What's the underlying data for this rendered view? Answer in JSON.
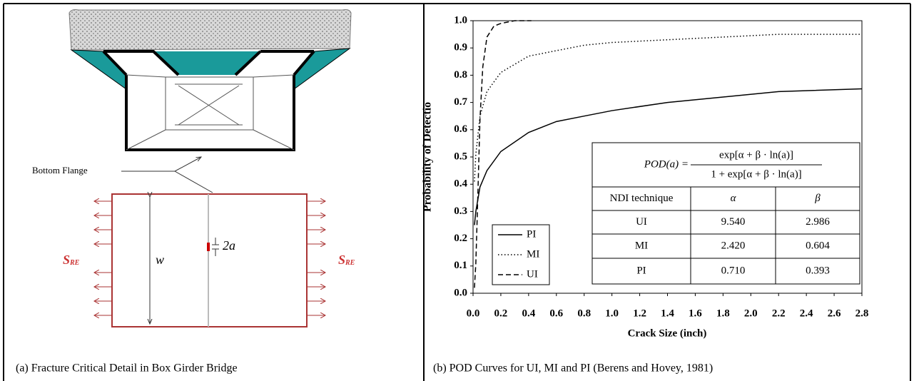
{
  "panel_a": {
    "caption": "(a) Fracture Critical Detail in Box Girder Bridge",
    "labels": {
      "bottom_flange": "Bottom Flange",
      "width": "w",
      "crack_symbol": "2a",
      "stress_symbol": "S",
      "stress_subscript": "RE"
    }
  },
  "chart_data": {
    "type": "line",
    "caption": "(b) POD Curves for UI, MI and PI (Berens and Hovey, 1981)",
    "xlabel": "Crack Size (inch)",
    "ylabel": "Probability of Detectio",
    "xlim": [
      0,
      2.8
    ],
    "ylim": [
      0,
      1
    ],
    "xticks": [
      {
        "value": 0,
        "label": "0.0"
      },
      0.2,
      0.4,
      0.6,
      0.8,
      {
        "value": 1,
        "label": "1.0"
      },
      1.2,
      1.4,
      1.6,
      1.8,
      {
        "value": 2,
        "label": "2.0"
      },
      2.2,
      2.4,
      2.6,
      2.8
    ],
    "yticks": [
      {
        "value": 0,
        "label": "0.0"
      },
      0.1,
      0.2,
      0.3,
      0.4,
      0.5,
      0.6,
      0.7,
      0.8,
      0.9,
      {
        "value": 1,
        "label": "1.0"
      }
    ],
    "legend": "lower left",
    "series": [
      {
        "name": "PI",
        "color": "#000000",
        "dash": "solid",
        "x": [
          0.01,
          0.02,
          0.05,
          0.1,
          0.2,
          0.4,
          0.6,
          0.8,
          1.0,
          1.4,
          1.8,
          2.2,
          2.8
        ],
        "values": [
          0.25,
          0.3,
          0.39,
          0.45,
          0.52,
          0.59,
          0.63,
          0.65,
          0.67,
          0.7,
          0.72,
          0.74,
          0.75
        ]
      },
      {
        "name": "MI",
        "color": "#000000",
        "dash": "dotted",
        "x": [
          0.01,
          0.02,
          0.05,
          0.1,
          0.2,
          0.4,
          0.6,
          0.8,
          1.0,
          1.4,
          1.8,
          2.2,
          2.8
        ],
        "values": [
          0.41,
          0.51,
          0.65,
          0.74,
          0.81,
          0.87,
          0.89,
          0.91,
          0.92,
          0.93,
          0.94,
          0.95,
          0.95
        ]
      },
      {
        "name": "UI",
        "color": "#000000",
        "dash": "dashed",
        "x": [
          0.01,
          0.02,
          0.03,
          0.05,
          0.07,
          0.1,
          0.15,
          0.2,
          0.3,
          0.42
        ],
        "values": [
          0.02,
          0.11,
          0.28,
          0.64,
          0.83,
          0.94,
          0.98,
          0.99,
          1.0,
          1.0
        ]
      }
    ],
    "formula": {
      "lhs": "POD(a) =",
      "numerator": "exp[α + β · ln(a)]",
      "denominator": "1 + exp[α + β · ln(a)]"
    },
    "table": {
      "header": [
        "NDI technique",
        "α",
        "β"
      ],
      "rows": [
        [
          "UI",
          "9.540",
          "2.986"
        ],
        [
          "MI",
          "2.420",
          "0.604"
        ],
        [
          "PI",
          "0.710",
          "0.393"
        ]
      ]
    }
  }
}
